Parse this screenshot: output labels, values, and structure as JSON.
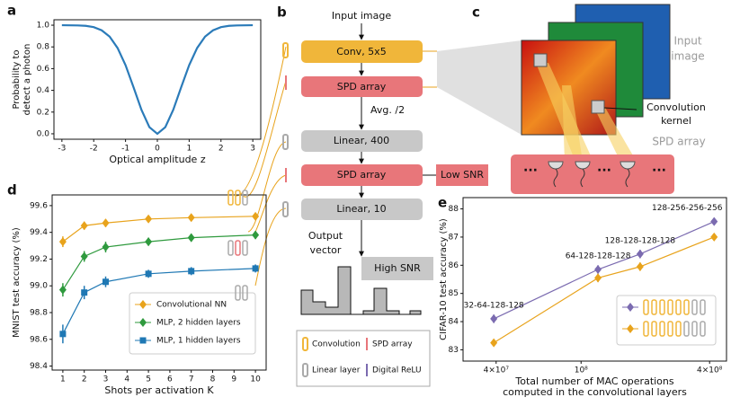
{
  "panel_labels": [
    "a",
    "b",
    "c",
    "d",
    "e"
  ],
  "diagram": {
    "input": "Input image",
    "conv": "Conv, 5x5",
    "spd1": "SPD array",
    "avg": "Avg. /2",
    "linear1": "Linear, 400",
    "spd2": "SPD array",
    "low_snr": "Low SNR",
    "linear2": "Linear, 10",
    "output": [
      "Output",
      "vector"
    ],
    "high_snr": "High SNR",
    "legend": [
      "Convolution",
      "SPD array",
      "Linear layer",
      "Digital ReLU"
    ]
  },
  "panel_c": {
    "input": [
      "Input",
      "image"
    ],
    "kernel": [
      "Convolution",
      "kernel"
    ],
    "spd": "SPD array",
    "dots": [
      "···",
      "···",
      "···"
    ]
  },
  "chart_data": [
    {
      "type": "line",
      "xlabel": "Optical amplitude z",
      "ylabel": [
        "Probability to",
        "detect a photon"
      ],
      "x": [
        -3,
        -2.75,
        -2.5,
        -2.25,
        -2,
        -1.75,
        -1.5,
        -1.25,
        -1,
        -0.75,
        -0.5,
        -0.25,
        0,
        0.25,
        0.5,
        0.75,
        1,
        1.25,
        1.5,
        1.75,
        2,
        2.25,
        2.5,
        2.75,
        3
      ],
      "series": [
        {
          "color": "#2b7bb9",
          "values": [
            1.0,
            0.999,
            0.998,
            0.994,
            0.982,
            0.953,
            0.895,
            0.79,
            0.632,
            0.43,
            0.221,
            0.061,
            0,
            0.061,
            0.221,
            0.43,
            0.632,
            0.79,
            0.895,
            0.953,
            0.982,
            0.994,
            0.998,
            0.999,
            1.0
          ]
        }
      ],
      "xlim": [
        -3.25,
        3.25
      ],
      "ylim": [
        -0.05,
        1.05
      ],
      "xticks": [
        -3,
        -2,
        -1,
        0,
        1,
        2,
        3
      ],
      "yticks": [
        {
          "value": 0,
          "label": "0.0"
        },
        {
          "value": 0.2,
          "label": "0.2"
        },
        {
          "value": 0.4,
          "label": "0.4"
        },
        {
          "value": 0.6,
          "label": "0.6"
        },
        {
          "value": 0.8,
          "label": "0.8"
        },
        {
          "value": 1,
          "label": "1.0"
        }
      ]
    },
    {
      "type": "line",
      "xlabel": "Shots per activation K",
      "ylabel": [
        "MNIST test accuracy (%)"
      ],
      "x": [
        1,
        2,
        3,
        5,
        7,
        10
      ],
      "series": [
        {
          "name": "Convolutional NN",
          "color": "#e8a31c",
          "marker": "diamond",
          "values": [
            99.33,
            99.45,
            99.47,
            99.5,
            99.51,
            99.52
          ],
          "errors": [
            0.04,
            0.03,
            0.03,
            0.02,
            0.02,
            0.02
          ]
        },
        {
          "name": "MLP, 2 hidden layers",
          "color": "#2f9a3e",
          "marker": "diamond",
          "values": [
            98.97,
            99.22,
            99.29,
            99.33,
            99.36,
            99.38
          ],
          "errors": [
            0.05,
            0.04,
            0.04,
            0.03,
            0.03,
            0.03
          ]
        },
        {
          "name": "MLP, 1 hidden layers",
          "color": "#1f78b4",
          "marker": "square",
          "values": [
            98.64,
            98.95,
            99.03,
            99.09,
            99.11,
            99.13
          ],
          "errors": [
            0.07,
            0.05,
            0.04,
            0.03,
            0.03,
            0.03
          ]
        }
      ],
      "xlim": [
        0.5,
        10.5
      ],
      "ylim": [
        98.37,
        99.68
      ],
      "xticks": [
        1,
        2,
        3,
        4,
        5,
        6,
        7,
        8,
        9,
        10
      ],
      "yticks": [
        98.4,
        98.6,
        98.8,
        {
          "value": 99,
          "label": "99.0"
        },
        99.2,
        99.4,
        99.6
      ],
      "legend": "lower right"
    },
    {
      "type": "line",
      "xlabel": [
        "Total number of MAC operations",
        "computed in the convolutional layers"
      ],
      "ylabel": [
        "CIFAR-10 test accuracy (%)"
      ],
      "x": [
        39000000,
        120000000,
        189000000,
        420000000
      ],
      "xscale": "log",
      "series": [
        {
          "color": "#7b6bb0",
          "marker": "diamond",
          "values": [
            84.1,
            85.85,
            86.4,
            87.55
          ],
          "errors": [
            0.15,
            0.15,
            0.15,
            0.12
          ]
        },
        {
          "color": "#e8a31c",
          "marker": "diamond",
          "values": [
            83.25,
            85.55,
            85.95,
            87.0
          ],
          "errors": [
            0.12,
            0.15,
            0.15,
            0.12
          ]
        }
      ],
      "annotations": [
        "32-64-128-128",
        "64-128-128-128",
        "128-128-128-128",
        "128-256-256-256"
      ],
      "xlim": [
        28000000,
        480000000
      ],
      "ylim": [
        82.6,
        88.4
      ],
      "xticks": [
        {
          "value": 40000000,
          "label": "4×10⁷"
        },
        {
          "value": 100000000,
          "label": "10⁸"
        },
        {
          "value": 400000000,
          "label": "4×10⁸"
        }
      ],
      "yticks": [
        83,
        84,
        85,
        86,
        87,
        88
      ],
      "legend": "lower right"
    }
  ]
}
